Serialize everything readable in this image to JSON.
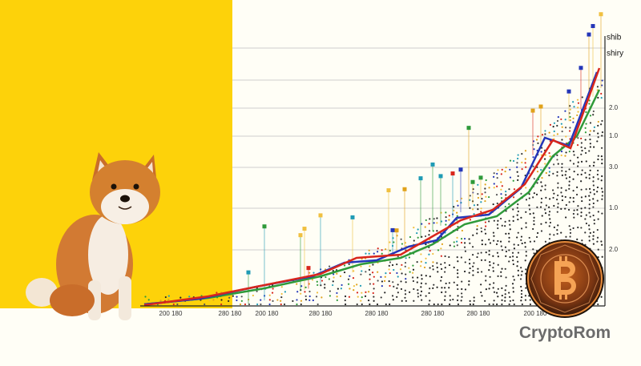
{
  "legend": [
    "shib",
    "shiry"
  ],
  "y_axis_labels": [
    "2.0",
    "1.0",
    "3.0",
    "1.0",
    "2.0"
  ],
  "x_axis_labels": [
    "200 180",
    "280 180",
    "200 180",
    "280 180",
    "280 180",
    "280 180",
    "280 180",
    "200 180"
  ],
  "brand": "CryptoRom"
}
